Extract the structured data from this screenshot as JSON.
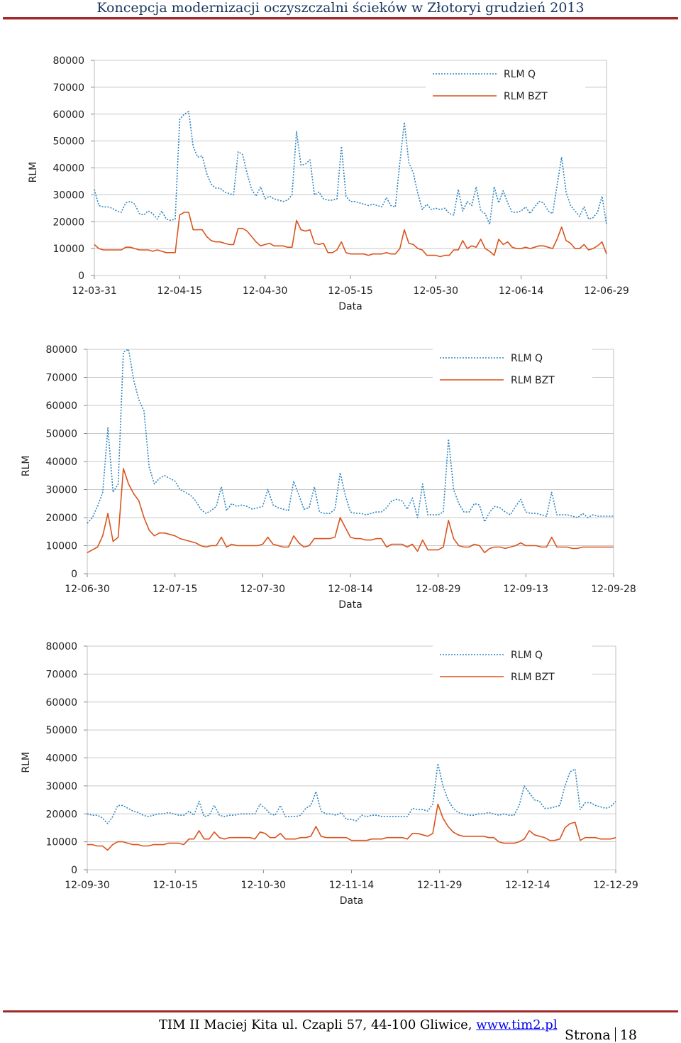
{
  "header": {
    "title": "Koncepcja modernizacji oczyszczalni ścieków w Złotoryi grudzień 2013"
  },
  "footer": {
    "text": "TIM II Maciej Kita ul. Czapli 57, 44-100 Gliwice,",
    "link": "www.tim2.pl",
    "page_label": "Strona",
    "page_number": "18"
  },
  "colors": {
    "rlm_q": "#2e86c1",
    "rlm_bzt": "#d9541e",
    "header": "#17365d",
    "rule": "#9e2a2b"
  },
  "chart_data": [
    {
      "type": "line",
      "xlabel": "Data",
      "ylabel": "RLM",
      "ylim": [
        0,
        80000
      ],
      "yticks": [
        "80000",
        "70000",
        "60000",
        "50000",
        "40000",
        "30000",
        "20000",
        "10000",
        "0"
      ],
      "xticks": [
        "12-03-31",
        "12-04-15",
        "12-04-30",
        "12-05-15",
        "12-05-30",
        "12-06-14",
        "12-06-29"
      ],
      "series": [
        {
          "name": "RLM Q",
          "values": [
            32000,
            26000,
            25500,
            25500,
            25000,
            24000,
            23500,
            27000,
            27500,
            26500,
            23000,
            22500,
            24000,
            23000,
            21000,
            24000,
            21000,
            20500,
            21000,
            58000,
            60000,
            61000,
            48000,
            44000,
            44500,
            38000,
            34000,
            32500,
            32500,
            31000,
            30500,
            30000,
            46000,
            45000,
            38000,
            32000,
            29500,
            33000,
            28500,
            29500,
            28500,
            28000,
            27500,
            28000,
            30000,
            53500,
            41000,
            41500,
            43000,
            30000,
            31000,
            28500,
            28000,
            28000,
            28500,
            48000,
            29500,
            27500,
            27500,
            27000,
            26500,
            26000,
            26500,
            26000,
            25500,
            29000,
            26000,
            25500,
            42000,
            57000,
            42000,
            38000,
            30500,
            24500,
            26500,
            24500,
            25000,
            24500,
            25000,
            23000,
            22500,
            32000,
            24000,
            27500,
            26000,
            33000,
            24000,
            23000,
            19000,
            33000,
            27000,
            31500,
            27000,
            23500,
            23500,
            24000,
            25500,
            23000,
            25500,
            27500,
            27000,
            24000,
            23000,
            33500,
            44000,
            31000,
            26000,
            24000,
            22000,
            25500,
            21000,
            21500,
            23500,
            29500,
            19000
          ],
          "color": "#2e86c1",
          "dashed": true
        },
        {
          "name": "RLM BZT",
          "values": [
            11500,
            10000,
            9500,
            9500,
            9500,
            9500,
            9500,
            10500,
            10500,
            10000,
            9500,
            9500,
            9500,
            9000,
            9500,
            9000,
            8500,
            8500,
            8500,
            22500,
            23500,
            23500,
            17000,
            17000,
            17000,
            14500,
            13000,
            12500,
            12500,
            12000,
            11500,
            11500,
            17500,
            17500,
            16500,
            14500,
            12500,
            11000,
            11500,
            12000,
            11000,
            11000,
            11000,
            10500,
            10500,
            20500,
            17000,
            16500,
            17000,
            12000,
            11500,
            12000,
            8500,
            8500,
            9500,
            12500,
            8500,
            8000,
            8000,
            8000,
            8000,
            7500,
            8000,
            8000,
            8000,
            8500,
            8000,
            8000,
            10000,
            17000,
            12000,
            11500,
            10000,
            9500,
            7500,
            7500,
            7500,
            7000,
            7500,
            7500,
            9500,
            9500,
            13000,
            10000,
            11000,
            10500,
            13500,
            10000,
            9000,
            7500,
            13500,
            11500,
            12500,
            10500,
            10000,
            10000,
            10500,
            10000,
            10500,
            11000,
            11000,
            10500,
            10000,
            13500,
            18000,
            13000,
            12000,
            10000,
            10000,
            11500,
            9500,
            10000,
            11000,
            12500,
            8000
          ],
          "color": "#d9541e",
          "dashed": false
        }
      ]
    },
    {
      "type": "line",
      "xlabel": "Data",
      "ylabel": "RLM",
      "ylim": [
        0,
        80000
      ],
      "yticks": [
        "80000",
        "70000",
        "60000",
        "50000",
        "40000",
        "30000",
        "20000",
        "10000",
        "0"
      ],
      "xticks": [
        "12-06-30",
        "12-07-15",
        "12-07-30",
        "12-08-14",
        "12-08-29",
        "12-09-13",
        "12-09-28"
      ],
      "series": [
        {
          "name": "RLM Q",
          "values": [
            18000,
            20000,
            24000,
            29000,
            52000,
            29000,
            32000,
            79000,
            80000,
            69000,
            62000,
            58000,
            38000,
            32000,
            34000,
            35000,
            34000,
            33000,
            30000,
            29000,
            28000,
            26000,
            23000,
            21500,
            22500,
            24000,
            31000,
            22500,
            25000,
            24000,
            24500,
            24000,
            23000,
            23500,
            24000,
            30000,
            24500,
            23500,
            23000,
            22500,
            33000,
            28000,
            23000,
            23500,
            31000,
            22000,
            21500,
            21500,
            23000,
            36000,
            28000,
            22000,
            21500,
            21500,
            21000,
            21500,
            22000,
            22000,
            23500,
            26000,
            26500,
            26000,
            23000,
            27000,
            20000,
            32000,
            21000,
            21000,
            21000,
            22000,
            48000,
            30000,
            25000,
            22000,
            22000,
            25000,
            24500,
            18500,
            22000,
            24000,
            23500,
            22000,
            21000,
            24000,
            26500,
            22000,
            21500,
            21500,
            21000,
            20500,
            29000,
            21000,
            21000,
            21000,
            20500,
            20000,
            21500,
            20000,
            21000,
            20500,
            20500,
            20500,
            20500
          ],
          "color": "#2e86c1",
          "dashed": true
        },
        {
          "name": "RLM BZT",
          "values": [
            7500,
            8500,
            9500,
            13500,
            21500,
            11500,
            13000,
            37500,
            32000,
            28500,
            26000,
            20000,
            15500,
            13500,
            14500,
            14500,
            14000,
            13500,
            12500,
            12000,
            11500,
            11000,
            10000,
            9500,
            10000,
            10000,
            13000,
            9500,
            10500,
            10000,
            10000,
            10000,
            10000,
            10000,
            10500,
            13000,
            10500,
            10000,
            9500,
            9500,
            13500,
            11000,
            9500,
            10000,
            12500,
            12500,
            12500,
            12500,
            13000,
            20000,
            16500,
            13000,
            12500,
            12500,
            12000,
            12000,
            12500,
            12500,
            9500,
            10500,
            10500,
            10500,
            9500,
            10500,
            8000,
            12000,
            8500,
            8500,
            8500,
            9500,
            19000,
            12500,
            10000,
            9500,
            9500,
            10500,
            10000,
            7500,
            9000,
            9500,
            9500,
            9000,
            9500,
            10000,
            11000,
            10000,
            10000,
            10000,
            9500,
            9500,
            13000,
            9500,
            9500,
            9500,
            9000,
            9000,
            9500,
            9500,
            9500,
            9500,
            9500,
            9500,
            9500
          ],
          "color": "#d9541e",
          "dashed": false
        }
      ]
    },
    {
      "type": "line",
      "xlabel": "Data",
      "ylabel": "RLM",
      "ylim": [
        0,
        80000
      ],
      "yticks": [
        "80000",
        "70000",
        "60000",
        "50000",
        "40000",
        "30000",
        "20000",
        "10000",
        "0"
      ],
      "xticks": [
        "12-09-30",
        "12-10-15",
        "12-10-30",
        "12-11-14",
        "12-11-29",
        "12-12-14",
        "12-12-29"
      ],
      "series": [
        {
          "name": "RLM Q",
          "values": [
            20000,
            19500,
            19500,
            18500,
            16500,
            19000,
            23000,
            23000,
            22000,
            21000,
            20500,
            19500,
            19000,
            19500,
            20000,
            20000,
            20500,
            20000,
            19500,
            19500,
            21000,
            19500,
            24500,
            19000,
            19500,
            23000,
            19500,
            19000,
            19500,
            19500,
            20000,
            20000,
            20000,
            20000,
            23500,
            22000,
            20000,
            19500,
            23000,
            19000,
            19000,
            19000,
            19500,
            22000,
            23000,
            28000,
            21000,
            20000,
            20000,
            19500,
            20500,
            18000,
            18000,
            17500,
            19500,
            19000,
            19500,
            19500,
            19000,
            19000,
            19000,
            19000,
            19000,
            19000,
            22000,
            21500,
            21500,
            21000,
            23500,
            38000,
            30000,
            25000,
            22000,
            20500,
            20000,
            19500,
            19500,
            20000,
            20000,
            20500,
            20000,
            19500,
            20000,
            19500,
            19500,
            23000,
            30000,
            27500,
            25000,
            24500,
            22000,
            22000,
            22500,
            23000,
            30000,
            35000,
            36000,
            21500,
            24000,
            24000,
            23000,
            22500,
            22000,
            22500,
            24500
          ],
          "color": "#2e86c1",
          "dashed": true
        },
        {
          "name": "RLM BZT",
          "values": [
            9000,
            9000,
            8500,
            8500,
            7000,
            9000,
            10000,
            10000,
            9500,
            9000,
            9000,
            8500,
            8500,
            9000,
            9000,
            9000,
            9500,
            9500,
            9500,
            9000,
            11000,
            11000,
            14000,
            11000,
            11000,
            13500,
            11500,
            11000,
            11500,
            11500,
            11500,
            11500,
            11500,
            11000,
            13500,
            13000,
            11500,
            11500,
            13000,
            11000,
            11000,
            11000,
            11500,
            11500,
            12000,
            15500,
            12000,
            11500,
            11500,
            11500,
            11500,
            11500,
            10500,
            10500,
            10500,
            10500,
            11000,
            11000,
            11000,
            11500,
            11500,
            11500,
            11500,
            11000,
            13000,
            13000,
            12500,
            12000,
            13000,
            23500,
            18500,
            15500,
            13500,
            12500,
            12000,
            12000,
            12000,
            12000,
            12000,
            11500,
            11500,
            10000,
            9500,
            9500,
            9500,
            10000,
            11000,
            14000,
            12500,
            12000,
            11500,
            10500,
            10500,
            11000,
            15000,
            16500,
            17000,
            10500,
            11500,
            11500,
            11500,
            11000,
            11000,
            11000,
            11500
          ],
          "color": "#d9541e",
          "dashed": false
        }
      ]
    }
  ]
}
